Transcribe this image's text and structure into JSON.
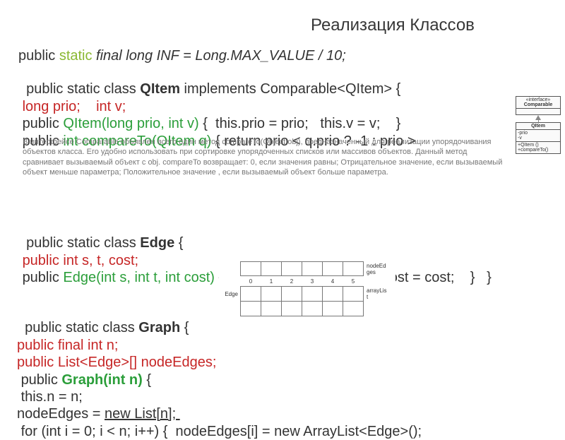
{
  "title": "Реализация Классов",
  "inf": {
    "kw_public": "public ",
    "kw_static": "static",
    "rest_head": " final long ",
    "rest_assign": "INF = Long.MAX_VALUE / 10;"
  },
  "qitem": {
    "line1_pre": "  public static class ",
    "line1_name": "QItem",
    "line1_post": " implements Comparable<QItem> {",
    "line2": " long prio;    int v;",
    "line3_pre": " public ",
    "line3_ctor": "QItem(long prio, int v)",
    "line3_post": " {  this.prio = prio;   this.v = v;    }",
    "line4_pre": " public ",
    "line4_fn": "int compareTo(QItem q)",
    "line4_post": " { return prio < q.prio ? -1 : prio >"
  },
  "desc": " В интерфейсе Comparable объявлен всего один метод compareTo(Object obj), предназначенный для реализации упорядочивания объектов класса. Его удобно использовать при сортировке упорядоченных списков или массивов объектов. Данный метод сравнивает вызываемый объект с obj. compareTo возвращает:       0, если значения равны;      Отрицательное значение, если вызываемый объект меньше параметра;       Положительное значение , если вызываемый объект больше параметра.",
  "edge": {
    "line1_pre": "  public static class ",
    "line1_name": "Edge",
    "line1_post": " {",
    "line2": " public int s, t, cost;",
    "line3_pre": " public ",
    "line3_ctor": "Edge(int s, int t, int cost)",
    "line3_post": " { this.s = s;  this.t = t;  this.cost = cost;    }   }"
  },
  "graph": {
    "line1_pre": "  public static class ",
    "line1_name": "Graph",
    "line1_post": " {",
    "line2": "public final int n;",
    "line3": "public List<Edge>[] nodeEdges;",
    "line4_pre": " public ",
    "line4_ctor": "Graph(int n)",
    "line4_post": " {",
    "line5": " this.n = n;",
    "line6_pre": "nodeEdges = ",
    "line6_under": "new List[n]; ",
    "line7": " for (int i = 0; i < n; i++) {  nodeEdges[i] = new ArrayList<Edge>();"
  },
  "uml": {
    "iface_tag": "«interface»",
    "iface_name": "Comparable",
    "cls_name": "QItem",
    "field1": "-prio",
    "field2": "-v",
    "method1": "+QItem ()",
    "method2": "+compareTo()"
  },
  "diagram": {
    "top_label_right": "nodeEd\nges",
    "indices": [
      "0",
      "1",
      "2",
      "3",
      "4",
      "5"
    ],
    "row_label": "Edge",
    "side_label2": "arrayLis\nt"
  },
  "colors": {
    "static_kw": "#8ab833",
    "red": "#c62626",
    "green": "#2b9e3a",
    "text": "#333333",
    "paragraph": "#777777"
  }
}
